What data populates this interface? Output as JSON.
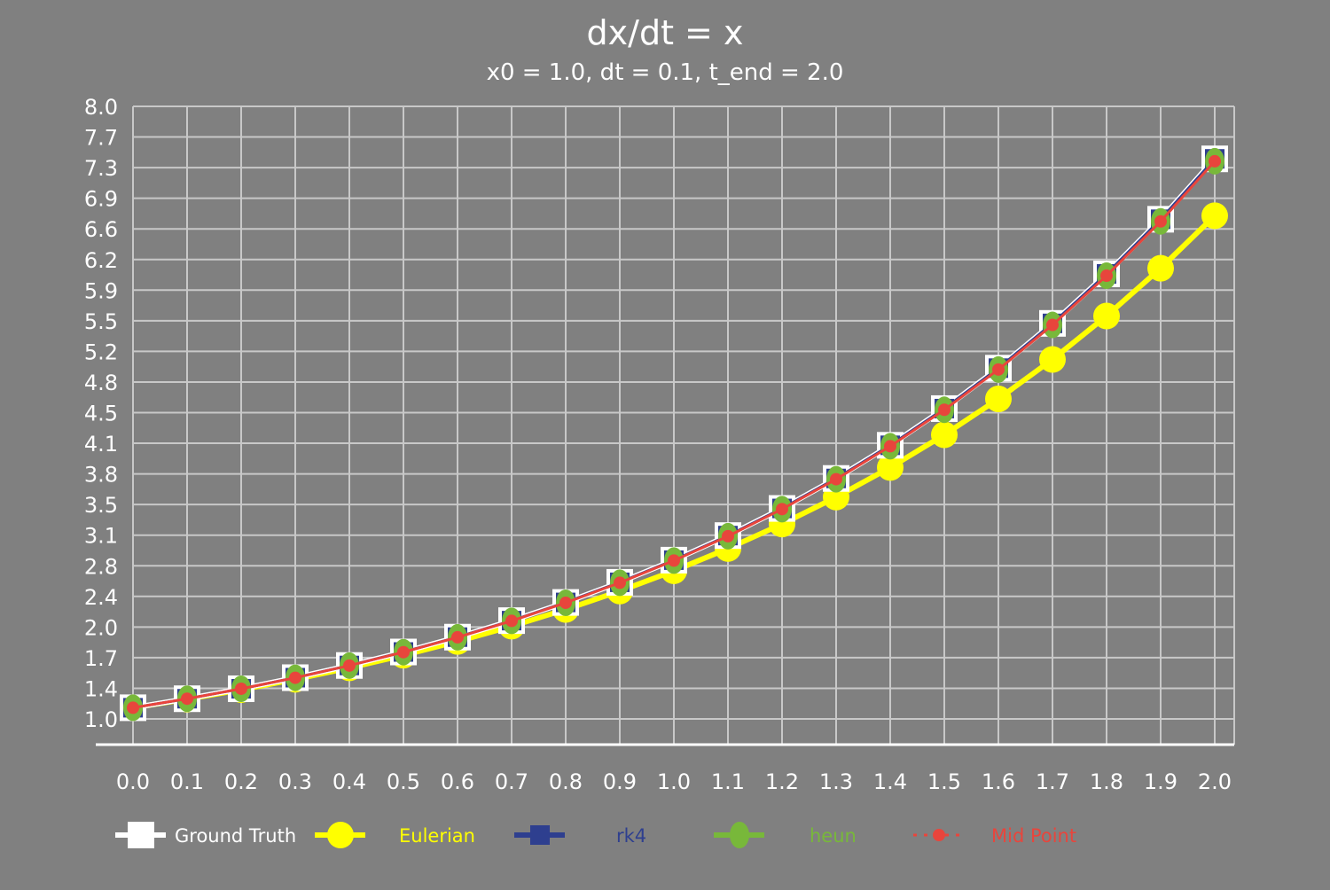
{
  "chart_data": {
    "type": "line",
    "title": "dx/dt = x",
    "subtitle": "x0 = 1.0, dt = 0.1, t_end = 2.0",
    "xlabel": "",
    "ylabel": "",
    "x": [
      0.0,
      0.1,
      0.2,
      0.3,
      0.4,
      0.5,
      0.6,
      0.7,
      0.8,
      0.9,
      1.0,
      1.1,
      1.2,
      1.3,
      1.4,
      1.5,
      1.6,
      1.7,
      1.8,
      1.9,
      2.0
    ],
    "xtick_labels": [
      "0.0",
      "0.1",
      "0.2",
      "0.3",
      "0.4",
      "0.5",
      "0.6",
      "0.7",
      "0.8",
      "0.9",
      "1.0",
      "1.1",
      "1.2",
      "1.3",
      "1.4",
      "1.5",
      "1.6",
      "1.7",
      "1.8",
      "1.9",
      "2.0"
    ],
    "ylim": [
      0.87,
      8.0
    ],
    "ytick_labels": [
      "1.0",
      "1.4",
      "1.7",
      "2.0",
      "2.4",
      "2.8",
      "3.1",
      "3.5",
      "3.8",
      "4.1",
      "4.5",
      "4.8",
      "5.2",
      "5.5",
      "5.9",
      "6.2",
      "6.6",
      "6.9",
      "7.3",
      "7.7",
      "8.0"
    ],
    "grid": true,
    "legend_position": "bottom",
    "series": [
      {
        "name": "Ground Truth",
        "color": "#ffffff",
        "marker": "square",
        "values": [
          1.0,
          1.105,
          1.221,
          1.35,
          1.492,
          1.649,
          1.822,
          2.014,
          2.226,
          2.46,
          2.718,
          3.004,
          3.32,
          3.669,
          4.055,
          4.482,
          4.953,
          5.474,
          6.05,
          6.686,
          7.389
        ]
      },
      {
        "name": "Eulerian",
        "color": "#ffff00",
        "marker": "circle",
        "values": [
          1.0,
          1.1,
          1.21,
          1.331,
          1.464,
          1.611,
          1.772,
          1.949,
          2.144,
          2.358,
          2.594,
          2.853,
          3.138,
          3.452,
          3.797,
          4.177,
          4.595,
          5.054,
          5.56,
          6.116,
          6.727
        ]
      },
      {
        "name": "rk4",
        "color": "#2e3f8f",
        "marker": "square",
        "values": [
          1.0,
          1.105,
          1.221,
          1.35,
          1.492,
          1.649,
          1.822,
          2.014,
          2.226,
          2.46,
          2.718,
          3.004,
          3.32,
          3.669,
          4.055,
          4.482,
          4.953,
          5.474,
          6.05,
          6.686,
          7.389
        ]
      },
      {
        "name": "heun",
        "color": "#78b83a",
        "marker": "ellipse",
        "values": [
          1.0,
          1.105,
          1.221,
          1.349,
          1.491,
          1.647,
          1.82,
          2.011,
          2.222,
          2.455,
          2.713,
          2.997,
          3.312,
          3.66,
          4.044,
          4.468,
          4.937,
          5.456,
          6.029,
          6.661,
          7.361
        ]
      },
      {
        "name": "Mid Point",
        "color": "#e8453c",
        "marker": "dot",
        "values": [
          1.0,
          1.105,
          1.221,
          1.349,
          1.491,
          1.647,
          1.82,
          2.011,
          2.222,
          2.455,
          2.713,
          2.997,
          3.312,
          3.66,
          4.044,
          4.468,
          4.937,
          5.456,
          6.029,
          6.661,
          7.361
        ]
      }
    ]
  }
}
